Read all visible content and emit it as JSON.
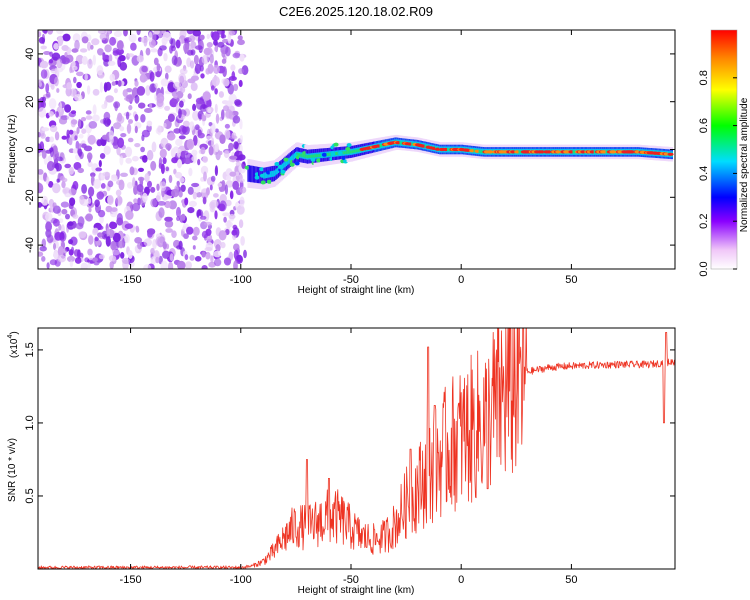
{
  "title": "C2E6.2025.120.18.02.R09",
  "chart_data": [
    {
      "type": "heatmap",
      "name": "spectrogram",
      "xlabel": "Height of straight line (km)",
      "ylabel": "Frequency (Hz)",
      "xlim": [
        -192,
        97
      ],
      "ylim": [
        -50,
        50
      ],
      "xticks": [
        -150,
        -100,
        -50,
        0,
        50
      ],
      "yticks": [
        -40,
        -20,
        0,
        20,
        40
      ],
      "noise_region_km": [
        -192,
        -98
      ],
      "signal_ridge": [
        {
          "x": -97,
          "f": -10
        },
        {
          "x": -90,
          "f": -11
        },
        {
          "x": -85,
          "f": -10
        },
        {
          "x": -80,
          "f": -6
        },
        {
          "x": -75,
          "f": -2
        },
        {
          "x": -70,
          "f": -3
        },
        {
          "x": -60,
          "f": -2
        },
        {
          "x": -50,
          "f": -1
        },
        {
          "x": -40,
          "f": 1
        },
        {
          "x": -30,
          "f": 3
        },
        {
          "x": -20,
          "f": 2
        },
        {
          "x": -10,
          "f": 0
        },
        {
          "x": 0,
          "f": 0
        },
        {
          "x": 10,
          "f": -1
        },
        {
          "x": 20,
          "f": -1
        },
        {
          "x": 50,
          "f": -1
        },
        {
          "x": 80,
          "f": -1
        },
        {
          "x": 95,
          "f": -2
        }
      ],
      "colorbar": {
        "label": "Normalized spectral amplitude",
        "ticks": [
          0.0,
          0.2,
          0.4,
          0.6,
          0.8
        ],
        "range": [
          0,
          1
        ]
      }
    },
    {
      "type": "line",
      "name": "snr",
      "xlabel": "Height of straight line (km)",
      "ylabel": "SNR (10 * v/v)",
      "scale_label": "(x10",
      "scale_exponent": "4",
      "xlim": [
        -192,
        97
      ],
      "ylim": [
        0,
        1.65
      ],
      "xticks": [
        -150,
        -100,
        -50,
        0,
        50
      ],
      "yticks": [
        0.5,
        1.0,
        1.5
      ],
      "color": "#ee3322",
      "envelope": [
        {
          "x": -192,
          "y": 0.01
        },
        {
          "x": -100,
          "y": 0.01
        },
        {
          "x": -95,
          "y": 0.02
        },
        {
          "x": -90,
          "y": 0.05
        },
        {
          "x": -85,
          "y": 0.12
        },
        {
          "x": -80,
          "y": 0.22
        },
        {
          "x": -75,
          "y": 0.3
        },
        {
          "x": -70,
          "y": 0.28
        },
        {
          "x": -65,
          "y": 0.32
        },
        {
          "x": -60,
          "y": 0.36
        },
        {
          "x": -55,
          "y": 0.35
        },
        {
          "x": -50,
          "y": 0.28
        },
        {
          "x": -45,
          "y": 0.22
        },
        {
          "x": -40,
          "y": 0.2
        },
        {
          "x": -35,
          "y": 0.22
        },
        {
          "x": -30,
          "y": 0.3
        },
        {
          "x": -25,
          "y": 0.45
        },
        {
          "x": -20,
          "y": 0.55
        },
        {
          "x": -15,
          "y": 0.65
        },
        {
          "x": -10,
          "y": 0.75
        },
        {
          "x": -5,
          "y": 0.85
        },
        {
          "x": 0,
          "y": 0.9
        },
        {
          "x": 5,
          "y": 0.95
        },
        {
          "x": 10,
          "y": 1.0
        },
        {
          "x": 15,
          "y": 1.1
        },
        {
          "x": 20,
          "y": 1.2
        },
        {
          "x": 25,
          "y": 1.3
        },
        {
          "x": 30,
          "y": 1.35
        },
        {
          "x": 40,
          "y": 1.38
        },
        {
          "x": 50,
          "y": 1.39
        },
        {
          "x": 70,
          "y": 1.4
        },
        {
          "x": 85,
          "y": 1.4
        },
        {
          "x": 97,
          "y": 1.42
        }
      ],
      "spikes": [
        {
          "x": -70,
          "y": 0.75
        },
        {
          "x": -60,
          "y": 0.62
        },
        {
          "x": -23,
          "y": 0.82
        },
        {
          "x": -15,
          "y": 1.52
        },
        {
          "x": -12,
          "y": 1.12
        },
        {
          "x": 12,
          "y": 0.55
        },
        {
          "x": 92,
          "y": 1.0
        },
        {
          "x": 93,
          "y": 1.62
        }
      ]
    }
  ]
}
